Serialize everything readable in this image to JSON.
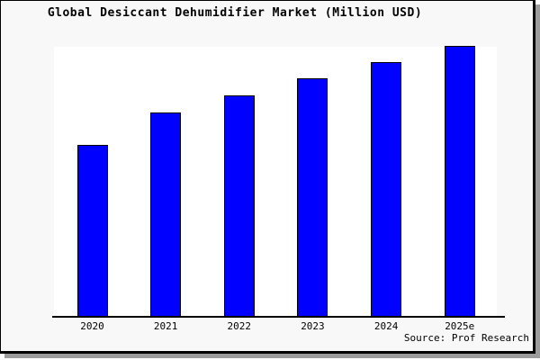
{
  "chart_data": {
    "type": "bar",
    "title": "Global Desiccant Dehumidifier Market (Million USD)",
    "categories": [
      "2020",
      "2021",
      "2022",
      "2023",
      "2024",
      "2025e"
    ],
    "values": [
      63.4,
      75.5,
      81.7,
      88.2,
      94.1,
      100
    ],
    "values_note": "No y-axis scale or data labels are shown in the chart; values are relative bar heights indexed to 2025e = 100",
    "xlabel": "",
    "ylabel": "",
    "ylim": [
      0,
      100
    ],
    "grid": false,
    "legend": false,
    "y_axis_visible": false,
    "bar_color": "#0000ff",
    "bar_border_color": "#000000",
    "plot_background": "#ffffff",
    "canvas_background": "#f8f8f8"
  },
  "footer": {
    "source": "Source: Prof Research"
  }
}
